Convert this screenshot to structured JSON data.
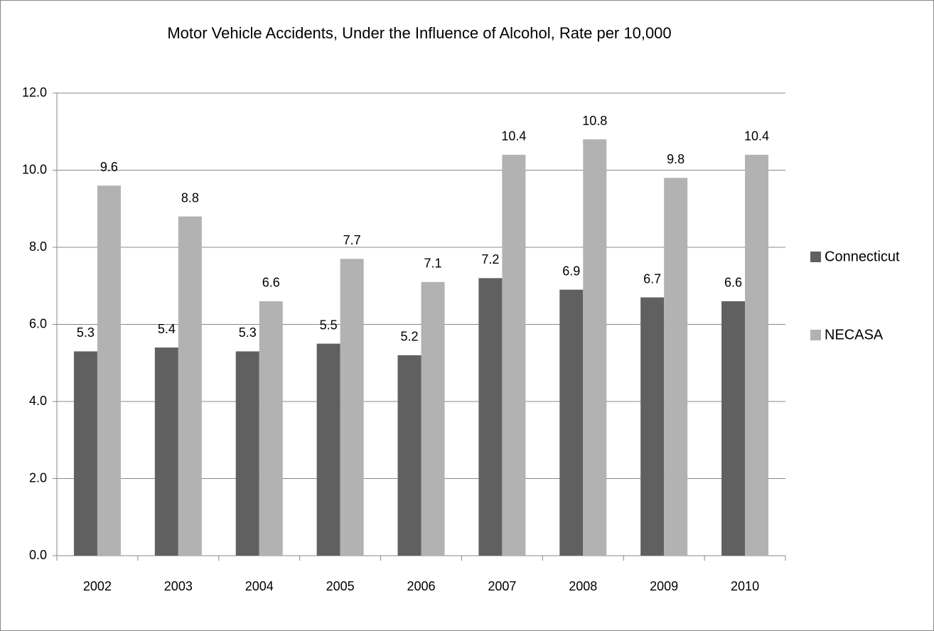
{
  "chart_data": {
    "type": "bar",
    "title": "Motor Vehicle Accidents, Under the Influence of Alcohol, Rate per 10,000",
    "categories": [
      "2002",
      "2003",
      "2004",
      "2005",
      "2006",
      "2007",
      "2008",
      "2009",
      "2010"
    ],
    "series": [
      {
        "name": "Connecticut",
        "color": "#606060",
        "values": [
          5.3,
          5.4,
          5.3,
          5.5,
          5.2,
          7.2,
          6.9,
          6.7,
          6.6
        ]
      },
      {
        "name": "NECASA",
        "color": "#b2b2b2",
        "values": [
          9.6,
          8.8,
          6.6,
          7.7,
          7.1,
          10.4,
          10.8,
          9.8,
          10.4
        ]
      }
    ],
    "ylim": [
      0,
      12
    ],
    "yticks": [
      {
        "value": 0,
        "label": "0.0"
      },
      {
        "value": 2,
        "label": "2.0"
      },
      {
        "value": 4,
        "label": "4.0"
      },
      {
        "value": 6,
        "label": "6.0"
      },
      {
        "value": 8,
        "label": "8.0"
      },
      {
        "value": 10,
        "label": "10.0"
      },
      {
        "value": 12,
        "label": "12.0"
      }
    ],
    "grid": true,
    "legend": "right"
  }
}
